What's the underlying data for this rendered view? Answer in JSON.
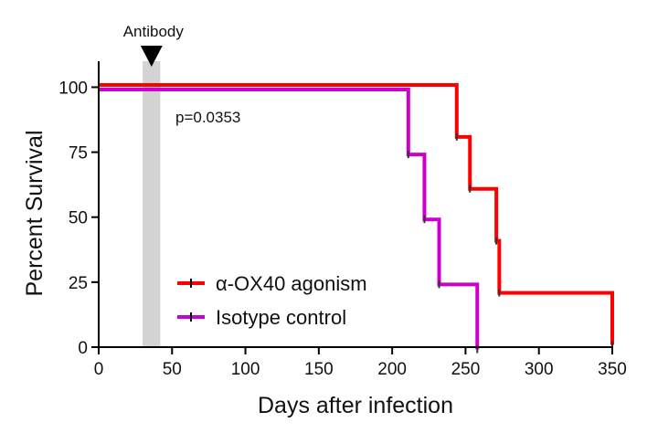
{
  "chart_data": {
    "type": "line",
    "step": true,
    "xlabel": "Days after infection",
    "ylabel": "Percent Survival",
    "xlim": [
      0,
      350
    ],
    "ylim": [
      0,
      110
    ],
    "xticks": [
      0,
      50,
      100,
      150,
      200,
      250,
      300,
      350
    ],
    "yticks": [
      0,
      25,
      50,
      75,
      100
    ],
    "grid": false,
    "legend_position": "bottom-center",
    "annotations": {
      "antibody_label": "Antibody",
      "antibody_window": [
        30,
        42
      ],
      "pvalue": "p=0.0353"
    },
    "series": [
      {
        "name": "α-OX40 agonism",
        "color": "#ff0000",
        "points": [
          [
            0,
            100
          ],
          [
            244,
            100
          ],
          [
            244,
            80
          ],
          [
            253,
            80
          ],
          [
            253,
            60
          ],
          [
            271,
            60
          ],
          [
            271,
            40
          ],
          [
            273,
            40
          ],
          [
            273,
            20
          ],
          [
            350,
            20
          ],
          [
            350,
            0
          ]
        ]
      },
      {
        "name": "Isotype control",
        "color": "#cc00cc",
        "points": [
          [
            0,
            100
          ],
          [
            211,
            100
          ],
          [
            211,
            75
          ],
          [
            222,
            75
          ],
          [
            222,
            50
          ],
          [
            232,
            50
          ],
          [
            232,
            25
          ],
          [
            258,
            25
          ],
          [
            258,
            0
          ]
        ]
      }
    ]
  }
}
